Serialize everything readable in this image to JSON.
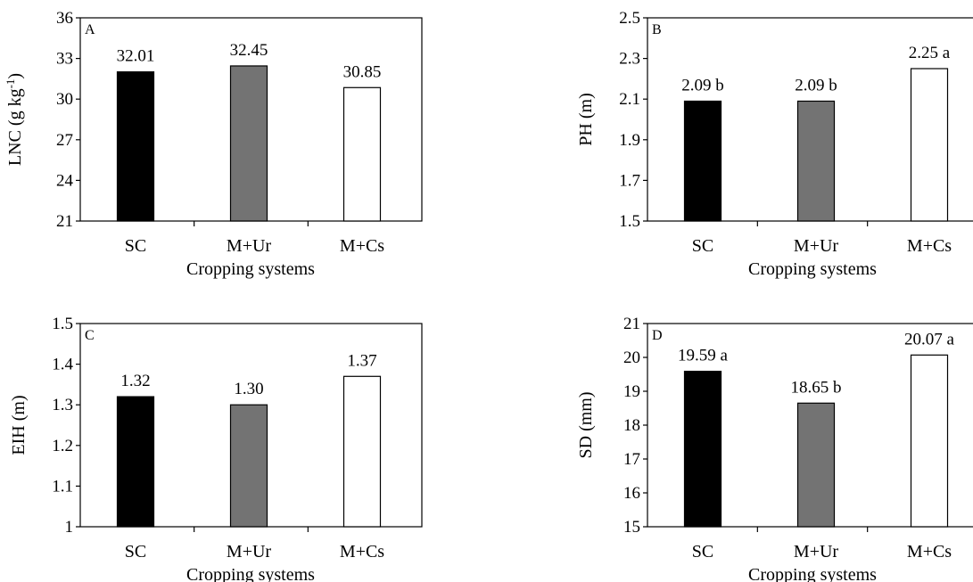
{
  "chart_data": [
    {
      "type": "bar",
      "panel": "A",
      "categories": [
        "SC",
        "M+Ur",
        "M+Cs"
      ],
      "values": [
        32.01,
        32.45,
        30.85
      ],
      "data_labels": [
        "32.01",
        "32.45",
        "30.85"
      ],
      "colors": [
        "#000000",
        "#737373",
        "#ffffff"
      ],
      "ylabel": "LNC (g kg⁻¹)",
      "xlabel": "Cropping systems",
      "ylim": [
        21,
        36
      ],
      "yticks": [
        21,
        24,
        27,
        30,
        33,
        36
      ],
      "ytick_labels": [
        "21",
        "24",
        "27",
        "30",
        "33",
        "36"
      ]
    },
    {
      "type": "bar",
      "panel": "B",
      "categories": [
        "SC",
        "M+Ur",
        "M+Cs"
      ],
      "values": [
        2.09,
        2.09,
        2.25
      ],
      "data_labels": [
        "2.09 b",
        "2.09 b",
        "2.25 a"
      ],
      "colors": [
        "#000000",
        "#737373",
        "#ffffff"
      ],
      "ylabel": "PH (m)",
      "xlabel": "Cropping systems",
      "ylim": [
        1.5,
        2.5
      ],
      "yticks": [
        1.5,
        1.7,
        1.9,
        2.1,
        2.3,
        2.5
      ],
      "ytick_labels": [
        "1.5",
        "1.7",
        "1.9",
        "2.1",
        "2.3",
        "2.5"
      ]
    },
    {
      "type": "bar",
      "panel": "C",
      "categories": [
        "SC",
        "M+Ur",
        "M+Cs"
      ],
      "values": [
        1.32,
        1.3,
        1.37
      ],
      "data_labels": [
        "1.32",
        "1.30",
        "1.37"
      ],
      "colors": [
        "#000000",
        "#737373",
        "#ffffff"
      ],
      "ylabel": "EIH (m)",
      "xlabel": "Cropping systems",
      "ylim": [
        1.0,
        1.5
      ],
      "yticks": [
        1.0,
        1.1,
        1.2,
        1.3,
        1.4,
        1.5
      ],
      "ytick_labels": [
        "1",
        "1.1",
        "1.2",
        "1.3",
        "1.4",
        "1.5"
      ]
    },
    {
      "type": "bar",
      "panel": "D",
      "categories": [
        "SC",
        "M+Ur",
        "M+Cs"
      ],
      "values": [
        19.59,
        18.65,
        20.07
      ],
      "data_labels": [
        "19.59 a",
        "18.65 b",
        "20.07 a"
      ],
      "colors": [
        "#000000",
        "#737373",
        "#ffffff"
      ],
      "ylabel": "SD (mm)",
      "xlabel": "Cropping systems",
      "ylim": [
        15,
        21
      ],
      "yticks": [
        15,
        16,
        17,
        18,
        19,
        20,
        21
      ],
      "ytick_labels": [
        "15",
        "16",
        "17",
        "18",
        "19",
        "20",
        "21"
      ]
    }
  ]
}
